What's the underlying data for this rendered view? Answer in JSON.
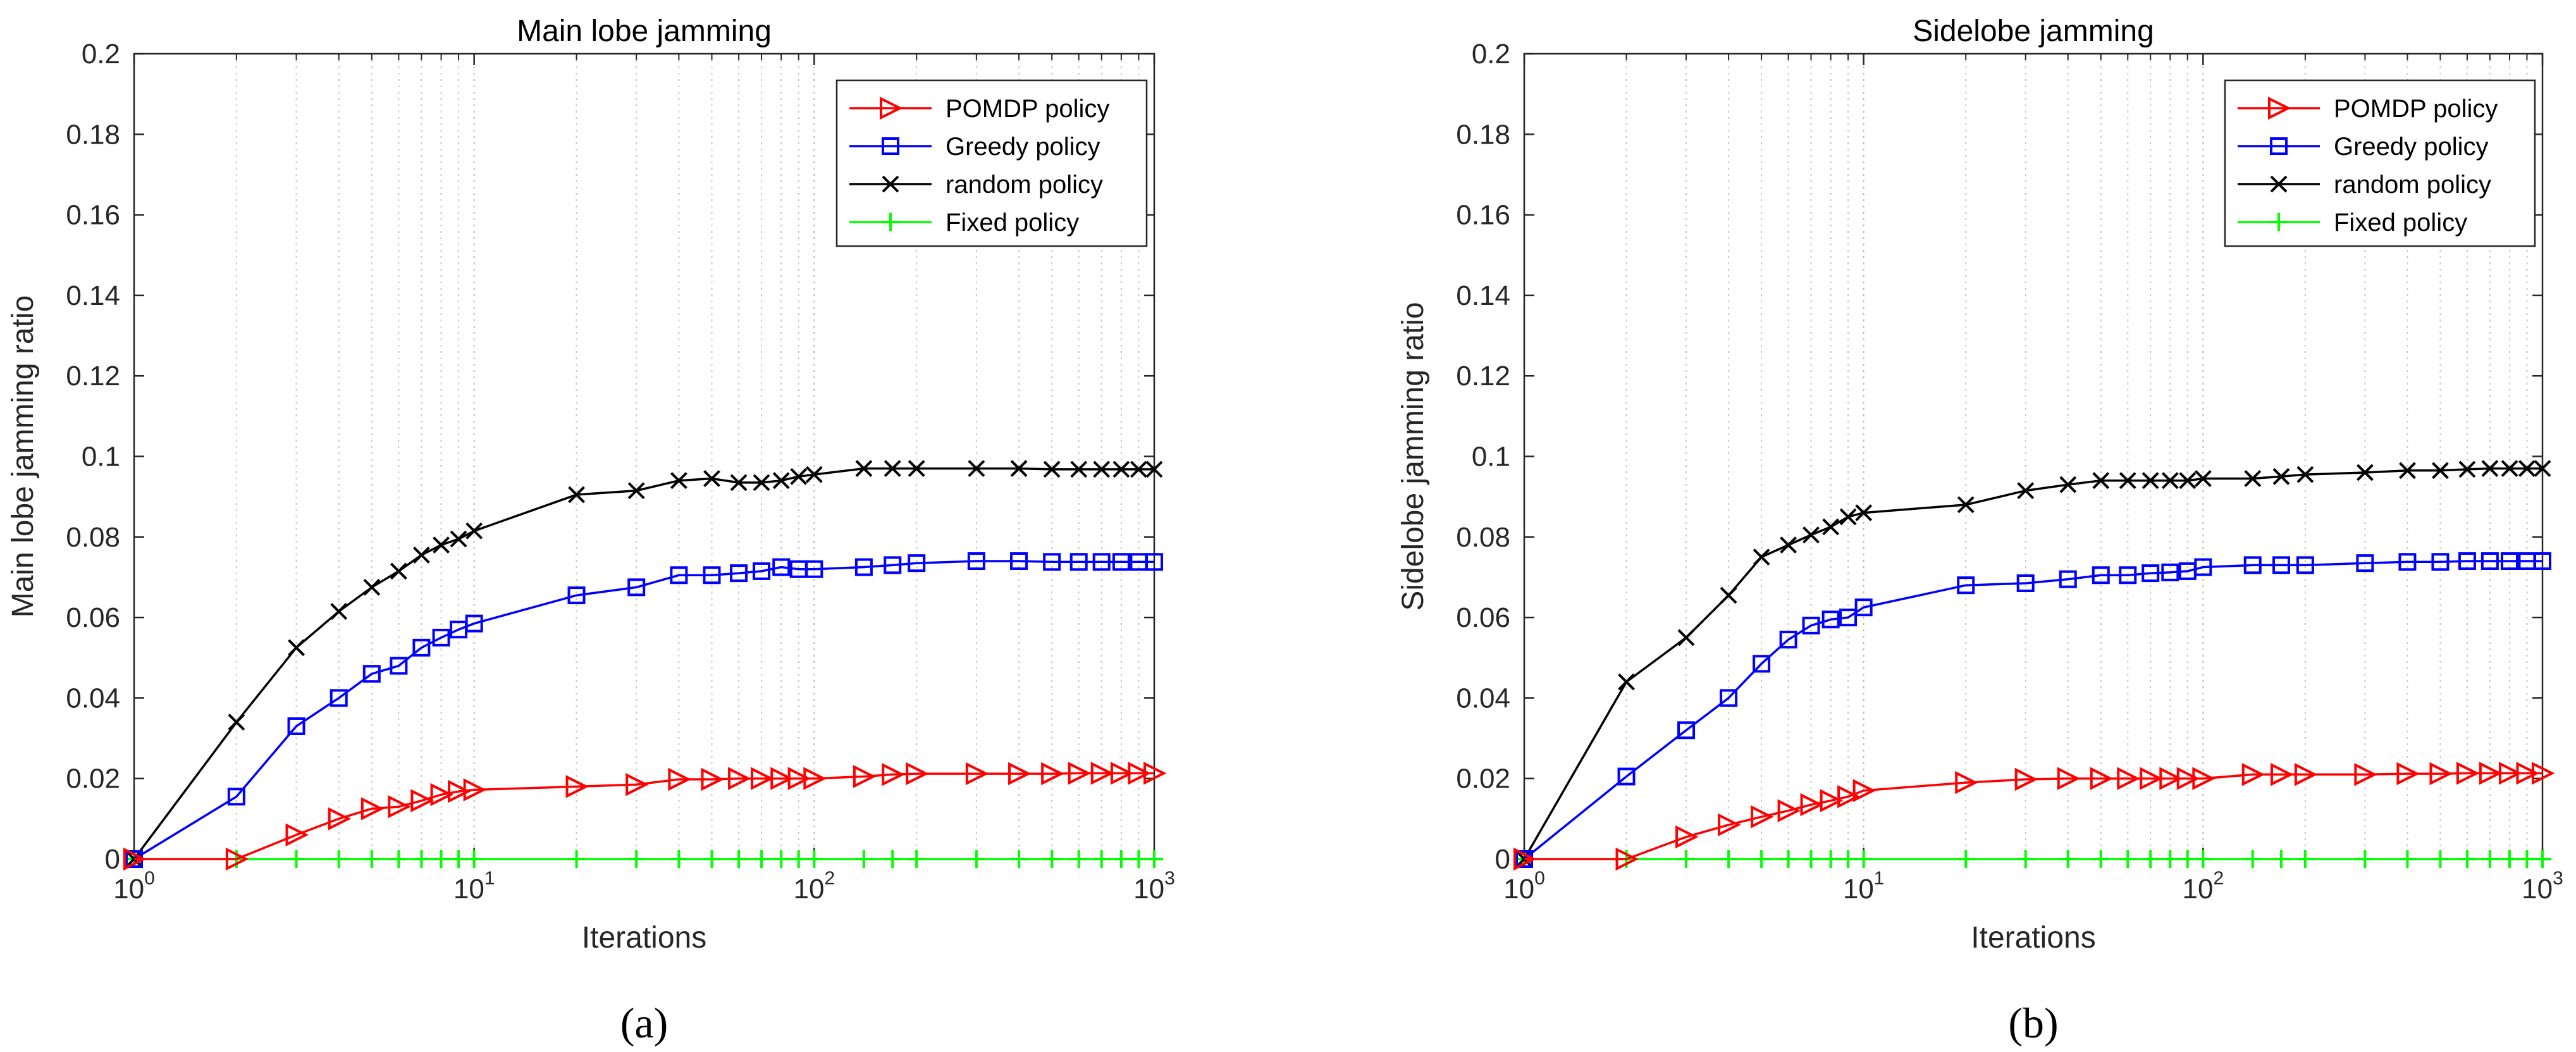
{
  "chart_data": [
    {
      "type": "line",
      "panel_label": "(a)",
      "title": "Main lobe jamming",
      "xlabel": "Iterations",
      "ylabel": "Main lobe jamming ratio",
      "xscale": "log",
      "xlim": [
        1,
        1000
      ],
      "ylim": [
        0,
        0.2
      ],
      "yticks": [
        0,
        0.02,
        0.04,
        0.06,
        0.08,
        0.1,
        0.12,
        0.14,
        0.16,
        0.18,
        0.2
      ],
      "ytick_labels": [
        "0",
        "0.02",
        "0.04",
        "0.06",
        "0.08",
        "0.1",
        "0.12",
        "0.14",
        "0.16",
        "0.18",
        "0.2"
      ],
      "xticks": [
        1,
        10,
        100,
        1000
      ],
      "xtick_labels": [
        {
          "base": "10",
          "exp": "0"
        },
        {
          "base": "10",
          "exp": "1"
        },
        {
          "base": "10",
          "exp": "2"
        },
        {
          "base": "10",
          "exp": "3"
        }
      ],
      "grid": true,
      "legend_position": "top-right",
      "x": [
        1,
        2,
        3,
        4,
        5,
        6,
        7,
        8,
        9,
        10,
        20,
        30,
        40,
        50,
        60,
        70,
        80,
        90,
        100,
        140,
        170,
        200,
        300,
        400,
        500,
        600,
        700,
        800,
        900,
        1000
      ],
      "series": [
        {
          "name": "POMDP policy",
          "color": "#ff0000",
          "marker": "triangle-right",
          "values": [
            0,
            0,
            0.006,
            0.01,
            0.0125,
            0.013,
            0.0145,
            0.016,
            0.0168,
            0.0172,
            0.018,
            0.0185,
            0.0198,
            0.0198,
            0.02,
            0.02,
            0.02,
            0.02,
            0.02,
            0.0205,
            0.021,
            0.0212,
            0.0212,
            0.0212,
            0.0212,
            0.0213,
            0.0213,
            0.0213,
            0.0213,
            0.0213
          ]
        },
        {
          "name": "Greedy policy",
          "color": "#0000ff",
          "marker": "square",
          "values": [
            0,
            0.0155,
            0.033,
            0.04,
            0.046,
            0.048,
            0.0525,
            0.055,
            0.057,
            0.0585,
            0.0655,
            0.0675,
            0.0705,
            0.0705,
            0.071,
            0.0715,
            0.0725,
            0.072,
            0.072,
            0.0725,
            0.073,
            0.0735,
            0.074,
            0.074,
            0.0738,
            0.0738,
            0.0738,
            0.0738,
            0.0738,
            0.0738
          ]
        },
        {
          "name": "random policy",
          "color": "#000000",
          "marker": "x",
          "values": [
            0,
            0.034,
            0.0525,
            0.0615,
            0.0675,
            0.0715,
            0.0755,
            0.078,
            0.0795,
            0.0815,
            0.0905,
            0.0915,
            0.094,
            0.0945,
            0.0935,
            0.0935,
            0.094,
            0.095,
            0.0955,
            0.097,
            0.097,
            0.097,
            0.097,
            0.097,
            0.0968,
            0.0968,
            0.0968,
            0.0968,
            0.0968,
            0.0968
          ]
        },
        {
          "name": "Fixed policy",
          "color": "#00ff00",
          "marker": "plus",
          "values": [
            0,
            0,
            0,
            0,
            0,
            0,
            0,
            0,
            0,
            0,
            0,
            0,
            0,
            0,
            0,
            0,
            0,
            0,
            0,
            0,
            0,
            0,
            0,
            0,
            0,
            0,
            0,
            0,
            0,
            0
          ]
        }
      ]
    },
    {
      "type": "line",
      "panel_label": "(b)",
      "title": "Sidelobe jamming",
      "xlabel": "Iterations",
      "ylabel": "Sidelobe jamming ratio",
      "xscale": "log",
      "xlim": [
        1,
        1000
      ],
      "ylim": [
        0,
        0.2
      ],
      "yticks": [
        0,
        0.02,
        0.04,
        0.06,
        0.08,
        0.1,
        0.12,
        0.14,
        0.16,
        0.18,
        0.2
      ],
      "ytick_labels": [
        "0",
        "0.02",
        "0.04",
        "0.06",
        "0.08",
        "0.1",
        "0.12",
        "0.14",
        "0.16",
        "0.18",
        "0.2"
      ],
      "xticks": [
        1,
        10,
        100,
        1000
      ],
      "xtick_labels": [
        {
          "base": "10",
          "exp": "0"
        },
        {
          "base": "10",
          "exp": "1"
        },
        {
          "base": "10",
          "exp": "2"
        },
        {
          "base": "10",
          "exp": "3"
        }
      ],
      "grid": true,
      "legend_position": "top-right",
      "x": [
        1,
        2,
        3,
        4,
        5,
        6,
        7,
        8,
        9,
        10,
        20,
        30,
        40,
        50,
        60,
        70,
        80,
        90,
        100,
        140,
        170,
        200,
        300,
        400,
        500,
        600,
        700,
        800,
        900,
        1000
      ],
      "series": [
        {
          "name": "POMDP policy",
          "color": "#ff0000",
          "marker": "triangle-right",
          "values": [
            0,
            0,
            0.0055,
            0.0085,
            0.0105,
            0.012,
            0.0135,
            0.0145,
            0.0155,
            0.017,
            0.019,
            0.0198,
            0.02,
            0.02,
            0.02,
            0.02,
            0.02,
            0.02,
            0.02,
            0.021,
            0.021,
            0.021,
            0.021,
            0.0212,
            0.0212,
            0.0213,
            0.0213,
            0.0213,
            0.0213,
            0.0213
          ]
        },
        {
          "name": "Greedy policy",
          "color": "#0000ff",
          "marker": "square",
          "values": [
            0,
            0.0205,
            0.032,
            0.04,
            0.0485,
            0.0545,
            0.058,
            0.0595,
            0.06,
            0.0625,
            0.068,
            0.0685,
            0.0695,
            0.0705,
            0.0705,
            0.071,
            0.0712,
            0.0715,
            0.0725,
            0.073,
            0.073,
            0.073,
            0.0735,
            0.0738,
            0.0738,
            0.074,
            0.074,
            0.074,
            0.074,
            0.074
          ]
        },
        {
          "name": "random policy",
          "color": "#000000",
          "marker": "x",
          "values": [
            0,
            0.044,
            0.055,
            0.0655,
            0.075,
            0.078,
            0.0805,
            0.0825,
            0.085,
            0.086,
            0.088,
            0.0915,
            0.093,
            0.094,
            0.094,
            0.094,
            0.094,
            0.094,
            0.0945,
            0.0945,
            0.095,
            0.0955,
            0.096,
            0.0965,
            0.0965,
            0.0968,
            0.097,
            0.097,
            0.097,
            0.097
          ]
        },
        {
          "name": "Fixed policy",
          "color": "#00ff00",
          "marker": "plus",
          "values": [
            0,
            0,
            0,
            0,
            0,
            0,
            0,
            0,
            0,
            0,
            0,
            0,
            0,
            0,
            0,
            0,
            0,
            0,
            0,
            0,
            0,
            0,
            0,
            0,
            0,
            0,
            0,
            0,
            0,
            0
          ]
        }
      ]
    }
  ]
}
